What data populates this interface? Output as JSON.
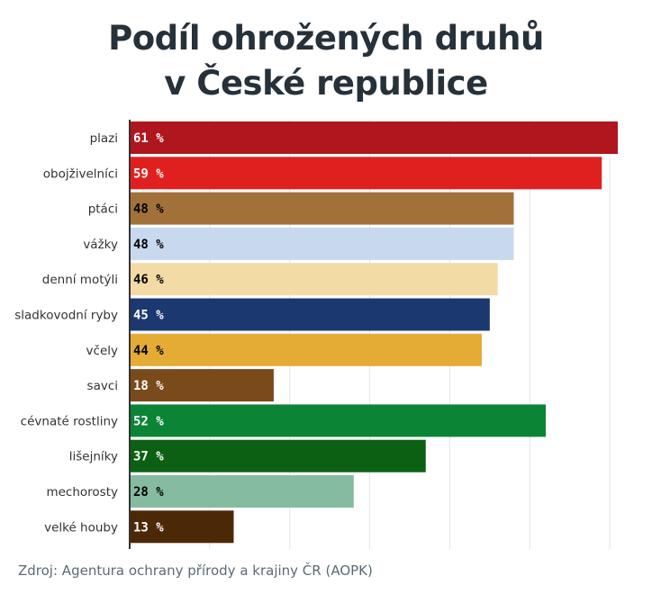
{
  "chart_data": {
    "type": "bar",
    "orientation": "horizontal",
    "title_lines": [
      "Podíl ohrožených druhů",
      "v České republice"
    ],
    "categories": [
      "plazi",
      "obojživelníci",
      "ptáci",
      "vážky",
      "denní motýli",
      "sladkovodní ryby",
      "včely",
      "savci",
      "cévnaté rostliny",
      "lišejníky",
      "mechorosty",
      "velké houby"
    ],
    "values": [
      61,
      59,
      48,
      48,
      46,
      45,
      44,
      18,
      52,
      37,
      28,
      13
    ],
    "value_labels": [
      "61 %",
      "59 %",
      "48 %",
      "48 %",
      "46 %",
      "45 %",
      "44 %",
      "18 %",
      "52 %",
      "37 %",
      "28 %",
      "13 %"
    ],
    "colors": [
      "#b0161e",
      "#e0201e",
      "#a2713a",
      "#c8d8ef",
      "#f3dba6",
      "#1c3870",
      "#e4ab35",
      "#7b4a1a",
      "#0c8435",
      "#0c6014",
      "#85bc9f",
      "#4b2806"
    ],
    "label_colors": [
      "#ffffff",
      "#ffffff",
      "#000000",
      "#000000",
      "#000000",
      "#ffffff",
      "#000000",
      "#ffffff",
      "#ffffff",
      "#ffffff",
      "#000000",
      "#ffffff"
    ],
    "xlim": [
      0,
      61
    ],
    "grid": true,
    "legend": "none"
  },
  "source": "Zdroj: Agentura ochrany přírody a krajiny ČR (AOPK)"
}
